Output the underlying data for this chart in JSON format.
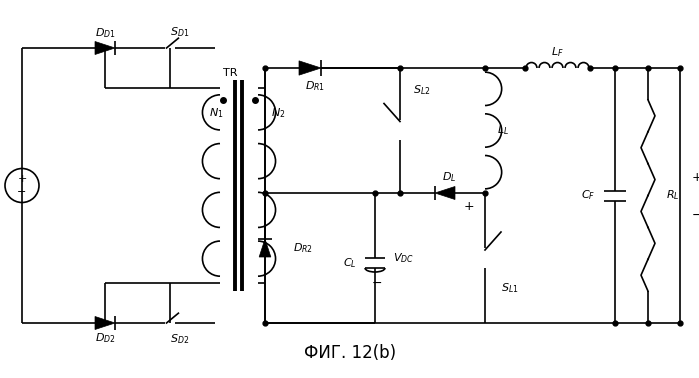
{
  "title": "ФИГ. 12(b)",
  "bg_color": "#ffffff",
  "line_color": "#000000",
  "title_fontsize": 12,
  "label_fontsize": 8.5,
  "fig_width": 6.99,
  "fig_height": 3.78,
  "dpi": 100
}
